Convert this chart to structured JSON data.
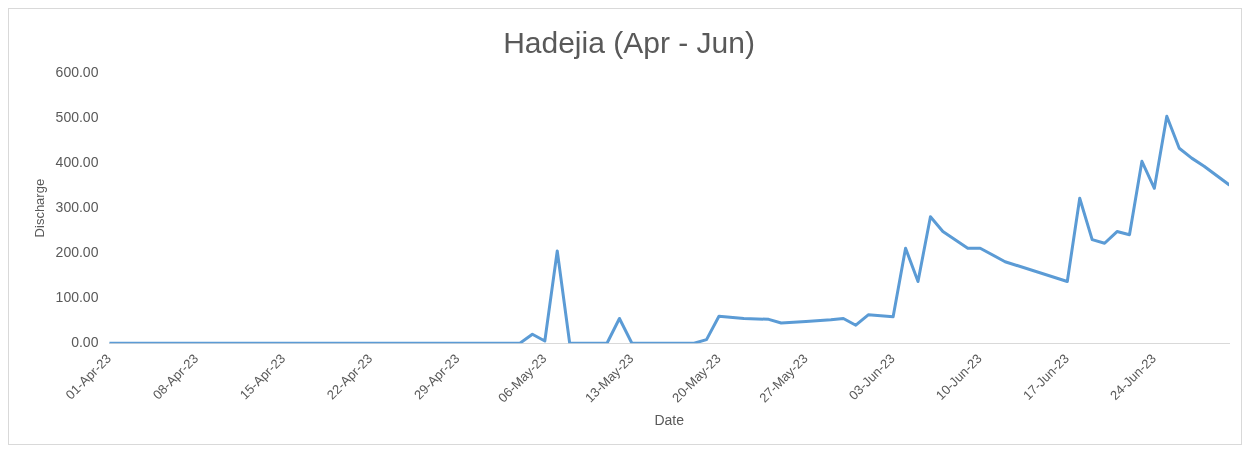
{
  "chart_data": {
    "type": "line",
    "title": "Hadejia (Apr - Jun)",
    "xlabel": "Date",
    "ylabel": "Discharge",
    "x": [
      "--04-01",
      "--05-04",
      "--05-05",
      "--05-06",
      "--05-07",
      "--05-08",
      "--05-11",
      "--05-12",
      "--05-13",
      "--05-18",
      "--05-19",
      "--05-20",
      "--05-22",
      "--05-24",
      "--05-25",
      "--05-27",
      "--05-29",
      "--05-30",
      "--05-31",
      "--06-01",
      "--06-03",
      "--06-04",
      "--06-05",
      "--06-06",
      "--06-07",
      "--06-09",
      "--06-10",
      "--06-12",
      "--06-17",
      "--06-18",
      "--06-19",
      "--06-20",
      "--06-21",
      "--06-22",
      "--06-23",
      "--06-24",
      "--06-25",
      "--06-26",
      "--06-27",
      "--06-28",
      "--06-30"
    ],
    "series": [
      {
        "color": "#5b9bd5",
        "values": [
          0,
          0,
          20,
          5,
          205,
          0,
          0,
          55,
          0,
          0,
          8,
          60,
          55,
          53,
          45,
          48,
          52,
          55,
          40,
          63,
          59,
          211,
          137,
          281,
          248,
          211,
          211,
          181,
          137,
          322,
          230,
          222,
          248,
          241,
          404,
          344,
          504,
          433,
          411,
          393,
          352
        ]
      }
    ],
    "xlim": [
      "--04-01",
      "--06-30"
    ],
    "xticks": [
      {
        "value": "--04-01",
        "label": "01-Apr-23"
      },
      {
        "value": "--04-08",
        "label": "08-Apr-23"
      },
      {
        "value": "--04-15",
        "label": "15-Apr-23"
      },
      {
        "value": "--04-22",
        "label": "22-Apr-23"
      },
      {
        "value": "--04-29",
        "label": "29-Apr-23"
      },
      {
        "value": "--05-06",
        "label": "06-May-23"
      },
      {
        "value": "--05-13",
        "label": "13-May-23"
      },
      {
        "value": "--05-20",
        "label": "20-May-23"
      },
      {
        "value": "--05-27",
        "label": "27-May-23"
      },
      {
        "value": "--06-03",
        "label": "03-Jun-23"
      },
      {
        "value": "--06-10",
        "label": "10-Jun-23"
      },
      {
        "value": "--06-17",
        "label": "17-Jun-23"
      },
      {
        "value": "--06-24",
        "label": "24-Jun-23"
      }
    ],
    "ylim": [
      0,
      600
    ],
    "yticks": [
      {
        "value": 0,
        "label": "0.00"
      },
      {
        "value": 100,
        "label": "100.00"
      },
      {
        "value": 200,
        "label": "200.00"
      },
      {
        "value": 300,
        "label": "300.00"
      },
      {
        "value": 400,
        "label": "400.00"
      },
      {
        "value": 500,
        "label": "500.00"
      },
      {
        "value": 600,
        "label": "600.00"
      }
    ],
    "grid": false,
    "legend": false,
    "marker": "none",
    "line_style": "solid"
  }
}
